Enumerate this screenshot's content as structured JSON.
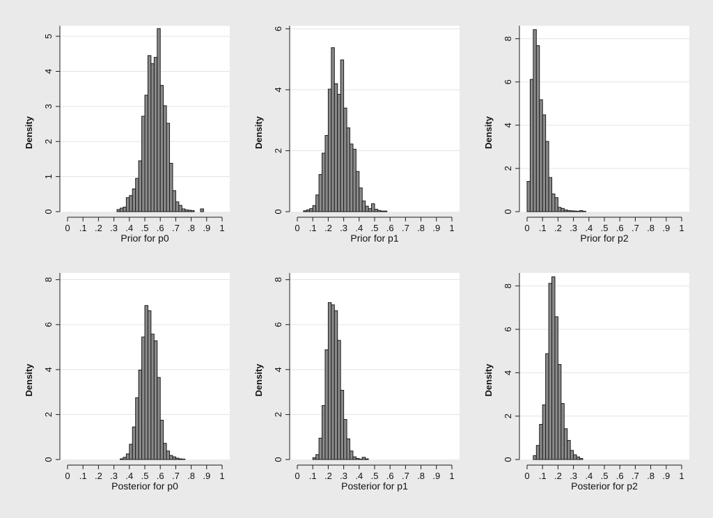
{
  "chart_data": [
    {
      "type": "bar",
      "xlabel": "Prior for p0",
      "ylabel": "Density",
      "xlim": [
        0,
        1
      ],
      "ylim": [
        0,
        5.3
      ],
      "xticks": [
        "0",
        ".1",
        ".2",
        ".3",
        ".4",
        ".5",
        ".6",
        ".7",
        ".8",
        ".9",
        "1"
      ],
      "yticks": [
        0,
        1,
        2,
        3,
        4,
        5
      ],
      "bin_width": 0.02,
      "x": [
        0.33,
        0.35,
        0.37,
        0.39,
        0.41,
        0.43,
        0.45,
        0.47,
        0.49,
        0.51,
        0.53,
        0.55,
        0.57,
        0.59,
        0.61,
        0.63,
        0.65,
        0.67,
        0.69,
        0.71,
        0.73,
        0.75,
        0.77,
        0.79,
        0.81,
        0.87
      ],
      "values": [
        0.06,
        0.1,
        0.13,
        0.4,
        0.46,
        0.65,
        0.95,
        1.45,
        2.72,
        3.32,
        4.45,
        4.22,
        4.4,
        5.22,
        3.6,
        3.02,
        2.52,
        1.38,
        0.6,
        0.28,
        0.18,
        0.08,
        0.05,
        0.04,
        0.03,
        0.08
      ],
      "grid": true
    },
    {
      "type": "bar",
      "xlabel": "Prior for p1",
      "ylabel": "Density",
      "xlim": [
        0,
        1
      ],
      "ylim": [
        0,
        6.1
      ],
      "xticks": [
        "0",
        ".1",
        ".2",
        ".3",
        ".4",
        ".5",
        ".6",
        ".7",
        ".8",
        ".9",
        "1"
      ],
      "yticks": [
        0,
        2,
        4,
        6
      ],
      "bin_width": 0.02,
      "x": [
        0.05,
        0.07,
        0.09,
        0.11,
        0.13,
        0.15,
        0.17,
        0.19,
        0.21,
        0.23,
        0.25,
        0.27,
        0.29,
        0.31,
        0.33,
        0.35,
        0.37,
        0.39,
        0.41,
        0.43,
        0.45,
        0.47,
        0.49,
        0.51,
        0.53,
        0.55,
        0.57
      ],
      "values": [
        0.03,
        0.06,
        0.1,
        0.2,
        0.55,
        1.22,
        1.92,
        2.5,
        4.02,
        5.38,
        4.2,
        3.85,
        4.98,
        3.4,
        2.75,
        2.22,
        2.05,
        1.32,
        0.78,
        0.35,
        0.18,
        0.1,
        0.26,
        0.08,
        0.04,
        0.02,
        0.02
      ],
      "grid": true
    },
    {
      "type": "bar",
      "xlabel": "Prior for p2",
      "ylabel": "Density",
      "xlim": [
        0,
        1
      ],
      "ylim": [
        0,
        8.6
      ],
      "xticks": [
        "0",
        ".1",
        ".2",
        ".3",
        ".4",
        ".5",
        ".6",
        ".7",
        ".8",
        ".9",
        "1"
      ],
      "yticks": [
        0,
        2,
        4,
        6,
        8
      ],
      "bin_width": 0.02,
      "x": [
        0.01,
        0.03,
        0.05,
        0.07,
        0.09,
        0.11,
        0.13,
        0.15,
        0.17,
        0.19,
        0.21,
        0.23,
        0.25,
        0.27,
        0.29,
        0.31,
        0.33,
        0.35,
        0.37
      ],
      "values": [
        1.4,
        6.12,
        8.42,
        7.68,
        5.18,
        4.48,
        3.25,
        1.58,
        0.82,
        0.65,
        0.2,
        0.15,
        0.08,
        0.05,
        0.04,
        0.03,
        0.02,
        0.05,
        0.02
      ],
      "grid": true
    },
    {
      "type": "bar",
      "xlabel": "Posterior for p0",
      "ylabel": "Density",
      "xlim": [
        0,
        1
      ],
      "ylim": [
        0,
        8.3
      ],
      "xticks": [
        "0",
        ".1",
        ".2",
        ".3",
        ".4",
        ".5",
        ".6",
        ".7",
        ".8",
        ".9",
        "1"
      ],
      "yticks": [
        0,
        2,
        4,
        6,
        8
      ],
      "bin_width": 0.02,
      "x": [
        0.35,
        0.37,
        0.39,
        0.41,
        0.43,
        0.45,
        0.47,
        0.49,
        0.51,
        0.53,
        0.55,
        0.57,
        0.59,
        0.61,
        0.63,
        0.65,
        0.67,
        0.69,
        0.71,
        0.73,
        0.75
      ],
      "values": [
        0.03,
        0.1,
        0.25,
        0.68,
        1.45,
        2.75,
        3.98,
        5.45,
        6.85,
        6.62,
        5.58,
        5.28,
        3.65,
        1.75,
        0.72,
        0.38,
        0.18,
        0.12,
        0.06,
        0.03,
        0.02
      ],
      "grid": true
    },
    {
      "type": "bar",
      "xlabel": "Posterior for p1",
      "ylabel": "Density",
      "xlim": [
        0,
        1
      ],
      "ylim": [
        0,
        8.3
      ],
      "xticks": [
        "0",
        ".1",
        ".2",
        ".3",
        ".4",
        ".5",
        ".6",
        ".7",
        ".8",
        ".9",
        "1"
      ],
      "yticks": [
        0,
        2,
        4,
        6,
        8
      ],
      "bin_width": 0.02,
      "x": [
        0.11,
        0.13,
        0.15,
        0.17,
        0.19,
        0.21,
        0.23,
        0.25,
        0.27,
        0.29,
        0.31,
        0.33,
        0.35,
        0.37,
        0.39,
        0.41,
        0.43,
        0.45
      ],
      "values": [
        0.08,
        0.22,
        0.95,
        2.4,
        4.88,
        6.98,
        6.88,
        6.62,
        5.3,
        3.08,
        1.78,
        0.92,
        0.38,
        0.12,
        0.05,
        0.02,
        0.1,
        0.03
      ],
      "grid": true
    },
    {
      "type": "bar",
      "xlabel": "Posterior for p2",
      "ylabel": "Density",
      "xlim": [
        0,
        1
      ],
      "ylim": [
        0,
        8.6
      ],
      "xticks": [
        "0",
        ".1",
        ".2",
        ".3",
        ".4",
        ".5",
        ".6",
        ".7",
        ".8",
        ".9",
        "1"
      ],
      "yticks": [
        0,
        2,
        4,
        6,
        8
      ],
      "bin_width": 0.02,
      "x": [
        0.05,
        0.07,
        0.09,
        0.11,
        0.13,
        0.15,
        0.17,
        0.19,
        0.21,
        0.23,
        0.25,
        0.27,
        0.29,
        0.31,
        0.33,
        0.35
      ],
      "values": [
        0.18,
        0.65,
        1.62,
        2.52,
        4.88,
        8.12,
        8.42,
        6.58,
        4.38,
        2.58,
        1.42,
        0.88,
        0.42,
        0.22,
        0.12,
        0.05
      ],
      "grid": true
    }
  ],
  "colors": {
    "background": "#eaeaea",
    "plot_area": "#ffffff",
    "grid": "#e3e3e3",
    "bar_fill": "#8a8a8a",
    "bar_stroke": "#1a1a1a",
    "axis": "#1a1a1a"
  }
}
